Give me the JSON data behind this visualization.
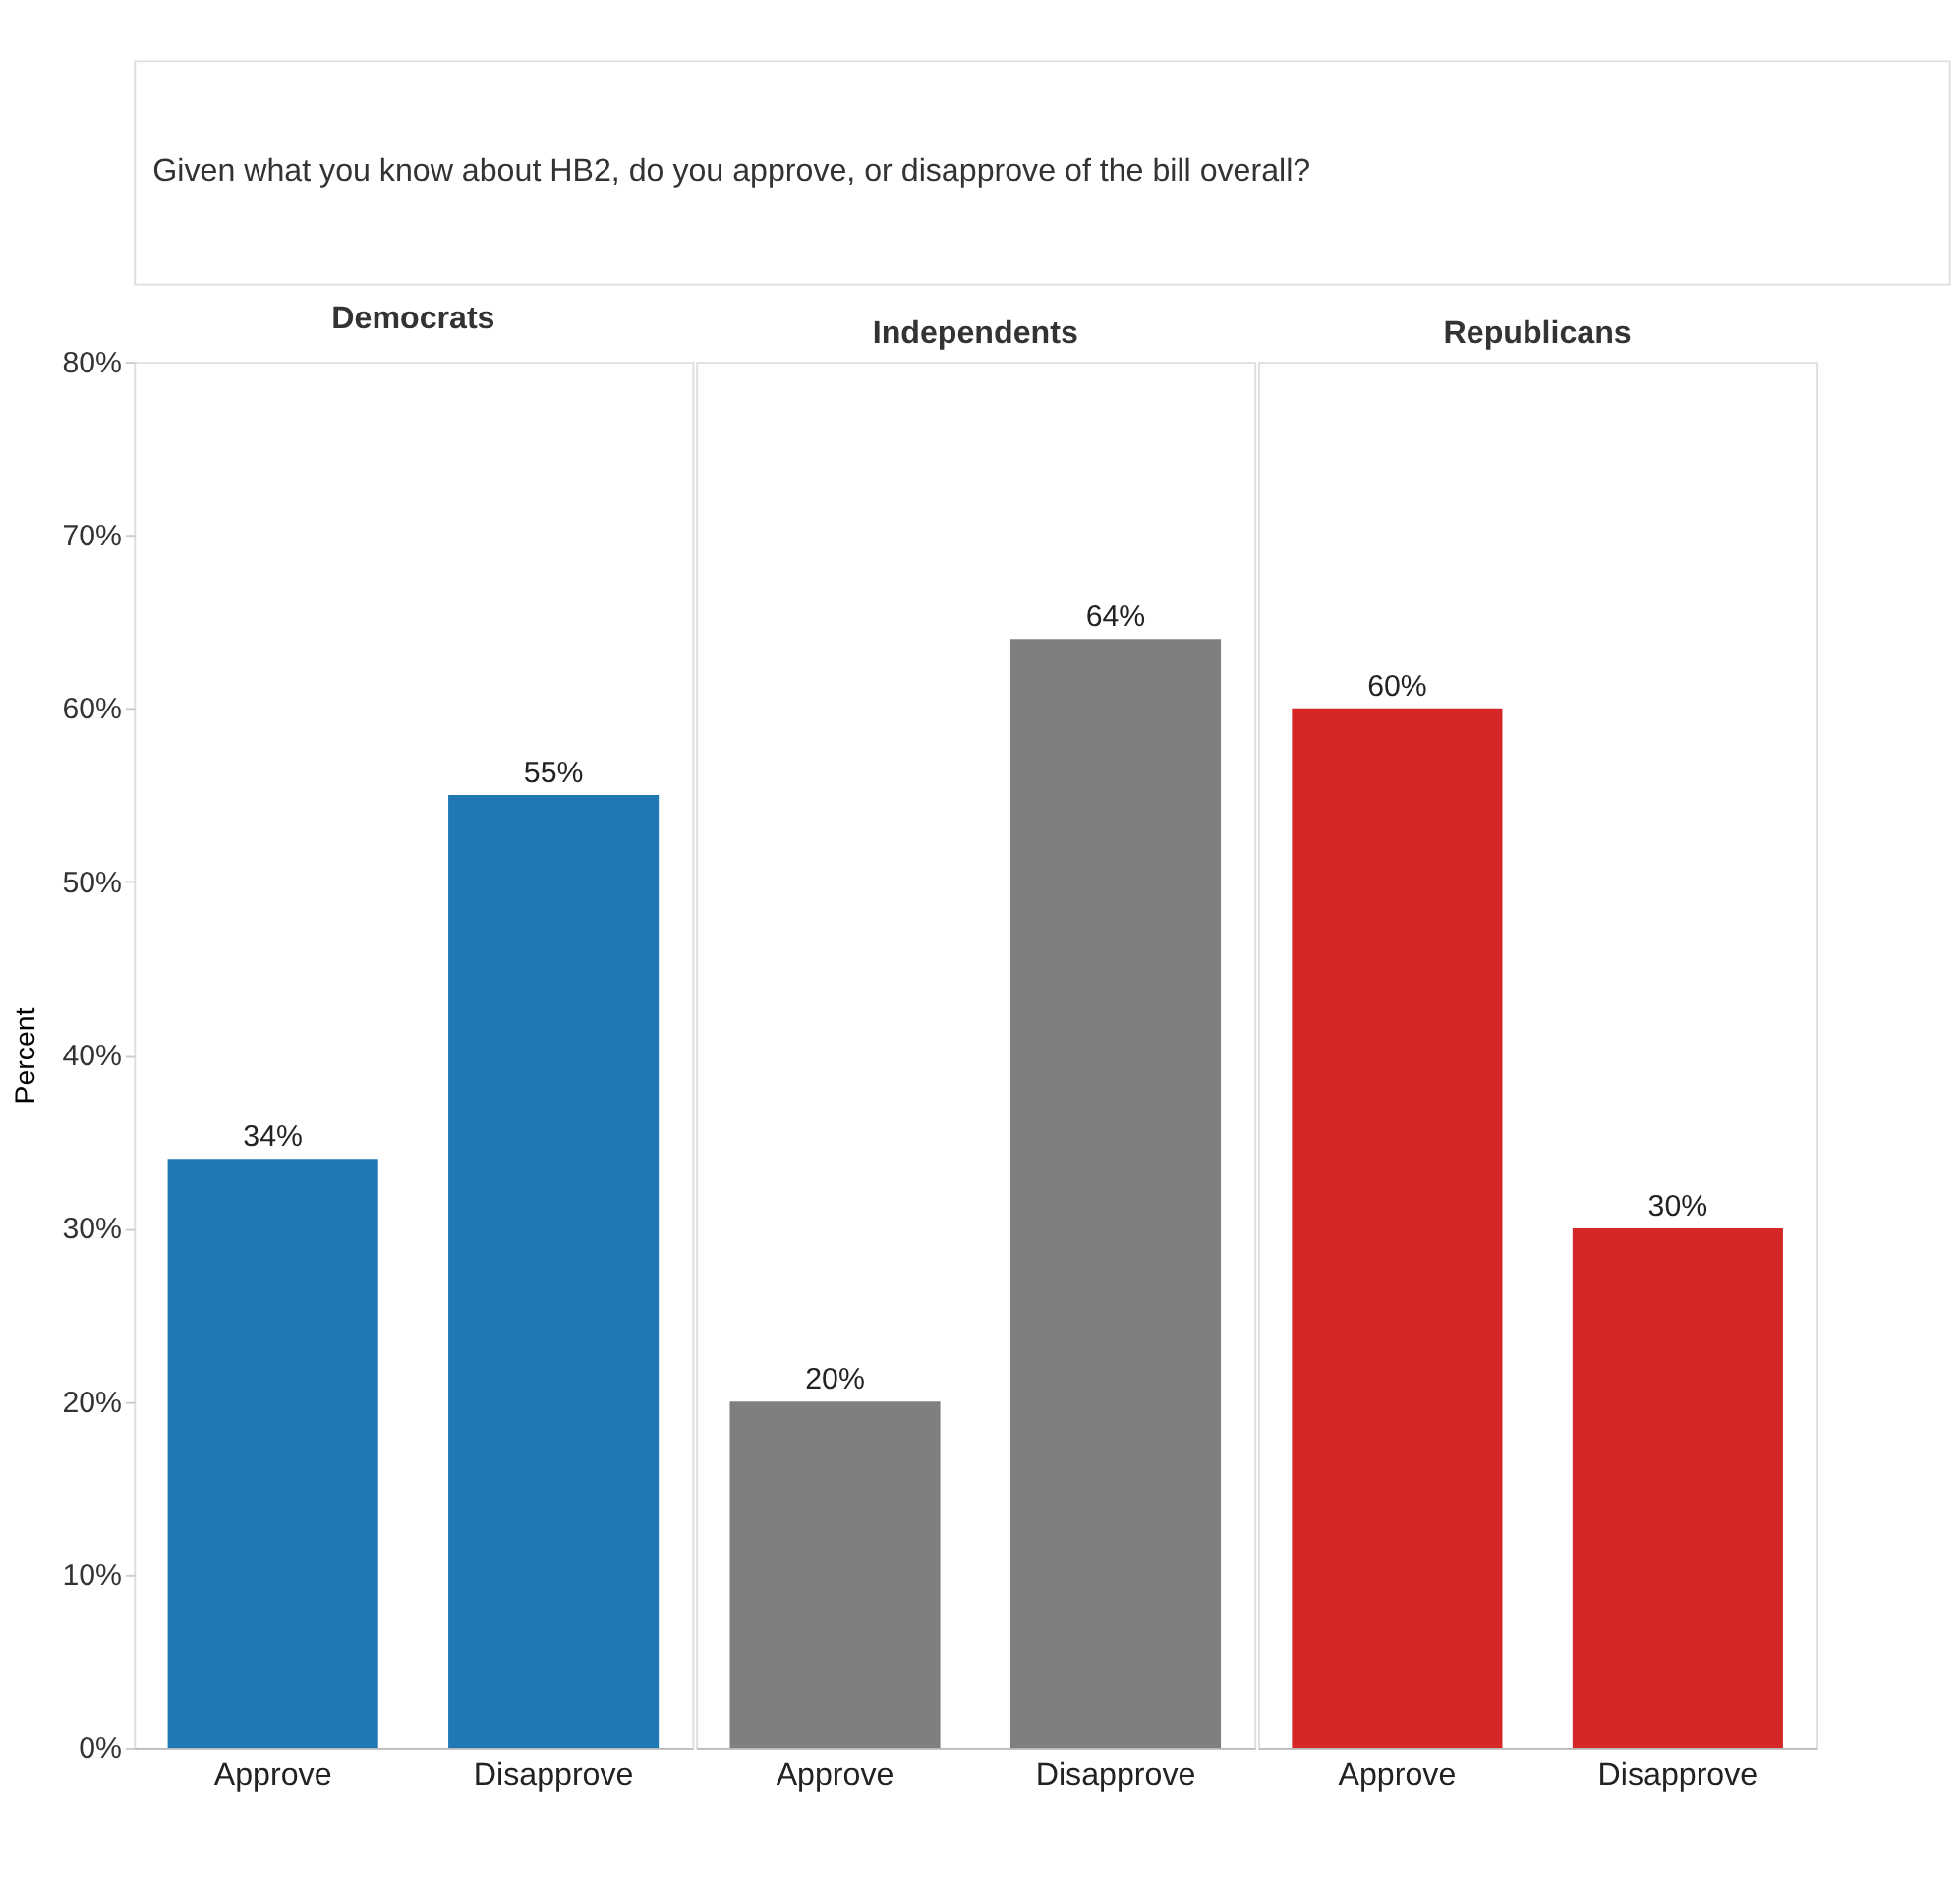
{
  "chart_data": [
    {
      "type": "other",
      "title": "Given what you know about HB2, do you approve, or disapprove of the bill overall?"
    },
    {
      "type": "bar",
      "title": "Democrats",
      "ylabel": "Percent",
      "categories": [
        "Approve",
        "Disapprove"
      ],
      "values": [
        34,
        55
      ],
      "colors": [
        "#1f77b4",
        "#1f77b4"
      ],
      "value_labels": [
        "34%",
        "55%"
      ],
      "ylim": [
        0,
        80
      ],
      "yticks": [
        {
          "value": 0,
          "label": "0%"
        },
        {
          "value": 10,
          "label": "10%"
        },
        {
          "value": 20,
          "label": "20%"
        },
        {
          "value": 30,
          "label": "30%"
        },
        {
          "value": 40,
          "label": "40%"
        },
        {
          "value": 50,
          "label": "50%"
        },
        {
          "value": 60,
          "label": "60%"
        },
        {
          "value": 70,
          "label": "70%"
        },
        {
          "value": 80,
          "label": "80%"
        }
      ],
      "grid": false
    },
    {
      "type": "bar",
      "title": "Independents",
      "categories": [
        "Approve",
        "Disapprove"
      ],
      "values": [
        20,
        64
      ],
      "colors": [
        "#7f7f7f",
        "#7f7f7f"
      ],
      "value_labels": [
        "20%",
        "64%"
      ],
      "ylim": [
        0,
        80
      ],
      "grid": false,
      "tick_labels": "x"
    },
    {
      "type": "bar",
      "title": "Republicans",
      "categories": [
        "Approve",
        "Disapprove"
      ],
      "values": [
        60,
        30
      ],
      "colors": [
        "#d62728",
        "#d62728"
      ],
      "value_labels": [
        "60%",
        "30%"
      ],
      "ylim": [
        0,
        80
      ],
      "grid": false,
      "tick_labels": "x"
    }
  ]
}
